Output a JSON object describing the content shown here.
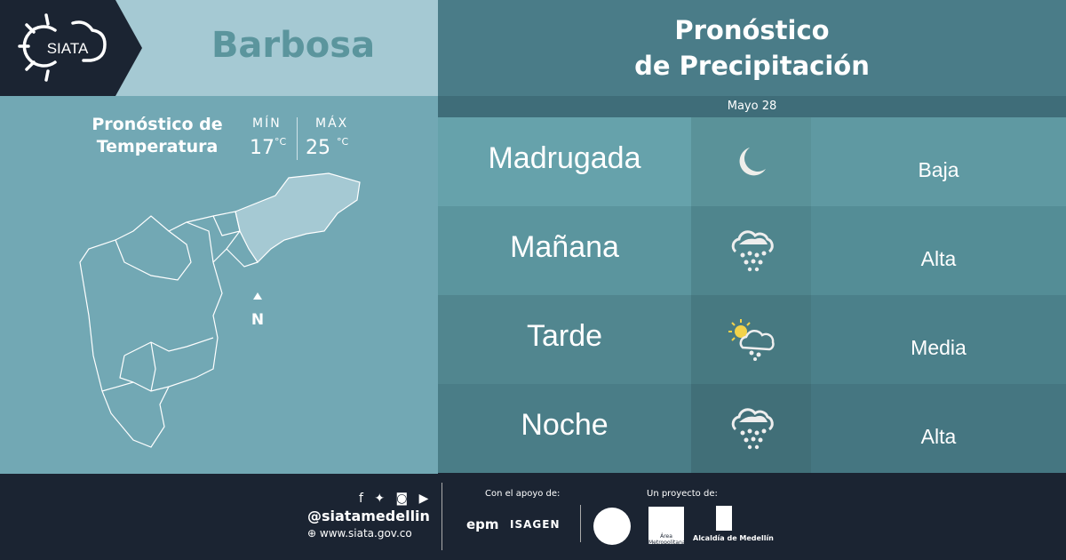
{
  "brand": {
    "logo_text": "SIATA"
  },
  "municipality": "Barbosa",
  "temperature": {
    "title_line1": "Pronóstico de",
    "title_line2": "Temperatura",
    "min_label": "MÍN",
    "min_value": "17",
    "max_label": "MÁX",
    "max_value": "25",
    "unit": "°C"
  },
  "map": {
    "north_label": "N"
  },
  "precipitation": {
    "title_line1": "Pronóstico",
    "title_line2": "de Precipitación",
    "date": "Mayo 28",
    "rows": [
      {
        "period": "Madrugada",
        "icon": "moon-icon",
        "level": "Baja",
        "c": [
          "#66a2ab",
          "#5a9299",
          "#5f99a2"
        ]
      },
      {
        "period": "Mañana",
        "icon": "heavy-rain-cloud-icon",
        "level": "Alta",
        "c": [
          "#5b959e",
          "#4f858d",
          "#548d96"
        ]
      },
      {
        "period": "Tarde",
        "icon": "sun-cloud-rain-icon",
        "level": "Media",
        "c": [
          "#51868f",
          "#477981",
          "#4b808a"
        ]
      },
      {
        "period": "Noche",
        "icon": "heavy-rain-cloud-icon",
        "level": "Alta",
        "c": [
          "#4a7d87",
          "#416f78",
          "#457681"
        ]
      }
    ]
  },
  "footer": {
    "social_handle": "@siatamedellin",
    "website": "www.siata.gov.co",
    "support_label": "Con el apoyo de:",
    "sponsors": [
      "epm",
      "ISAGEN"
    ],
    "project_label": "Un proyecto de:",
    "partners": [
      "Área Metropolitana",
      "Alcaldía de Medellín"
    ]
  }
}
